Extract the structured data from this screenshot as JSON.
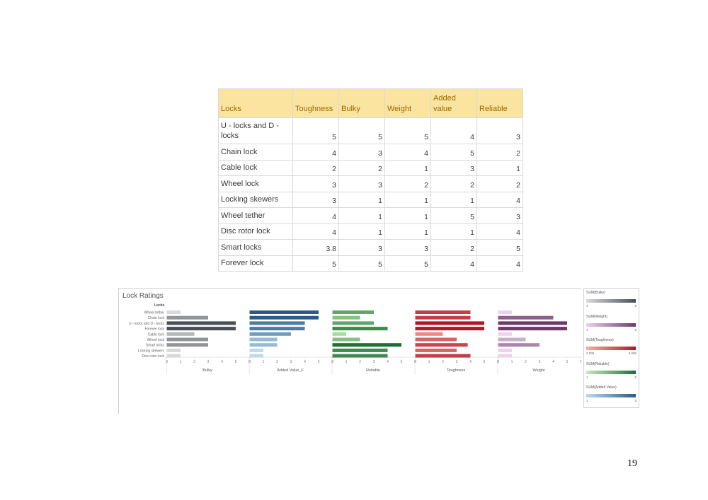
{
  "table": {
    "headers": [
      "Locks",
      "Toughness",
      "Bulky",
      "Weight",
      "Added value",
      "Reliable"
    ],
    "rows": [
      {
        "lock": "U - locks and D - locks",
        "values": [
          "5",
          "5",
          "5",
          "4",
          "3"
        ]
      },
      {
        "lock": "Chain lock",
        "values": [
          "4",
          "3",
          "4",
          "5",
          "2"
        ]
      },
      {
        "lock": "Cable lock",
        "values": [
          "2",
          "2",
          "1",
          "3",
          "1"
        ]
      },
      {
        "lock": "Wheel lock",
        "values": [
          "3",
          "3",
          "2",
          "2",
          "2"
        ]
      },
      {
        "lock": "Locking skewers",
        "values": [
          "3",
          "1",
          "1",
          "1",
          "4"
        ]
      },
      {
        "lock": "Wheel tether",
        "values": [
          "4",
          "1",
          "1",
          "5",
          "3"
        ]
      },
      {
        "lock": "Disc rotor lock",
        "values": [
          "4",
          "1",
          "1",
          "1",
          "4"
        ]
      },
      {
        "lock": "Smart locks",
        "values": [
          "3.8",
          "3",
          "3",
          "2",
          "5"
        ]
      },
      {
        "lock": "Forever lock",
        "values": [
          "5",
          "5",
          "5",
          "4",
          "4"
        ]
      }
    ]
  },
  "dashboard": {
    "title": "Lock Ratings",
    "locks_header": "Locks"
  },
  "chart_data": {
    "type": "bar",
    "title": "Lock Ratings",
    "orientation": "horizontal",
    "categories": [
      "Wheel tether",
      "Chain lock",
      "U - locks and D - locks",
      "Forever lock",
      "Cable lock",
      "Wheel lock",
      "Smart locks",
      "Locking skewers",
      "Disc rotor lock"
    ],
    "ticks": [
      "0",
      "1",
      "2",
      "3",
      "4",
      "5",
      "6"
    ],
    "series": [
      {
        "name": "Bulky",
        "values": [
          1,
          3,
          5,
          5,
          2,
          3,
          3,
          1,
          1
        ],
        "color_low": "#d9d9d9",
        "color_high": "#4a4f55"
      },
      {
        "name": "Added Value_F",
        "values": [
          5,
          5,
          4,
          4,
          3,
          2,
          2,
          1,
          1
        ],
        "color_low": "#b9dcef",
        "color_high": "#2c5a88"
      },
      {
        "name": "Reliable",
        "values": [
          3,
          2,
          3,
          4,
          1,
          2,
          5,
          4,
          4
        ],
        "color_low": "#a6dc9b",
        "color_high": "#1e6e36"
      },
      {
        "name": "Toughness",
        "values": [
          4,
          4,
          5,
          5,
          2,
          3,
          3.8,
          3,
          4
        ],
        "color_low": "#f8b1a1",
        "color_high": "#b5152b"
      },
      {
        "name": "Weight",
        "values": [
          1,
          4,
          5,
          5,
          1,
          2,
          3,
          1,
          1
        ],
        "color_low": "#ecd2ec",
        "color_high": "#6d3a6b"
      }
    ]
  },
  "legends": [
    {
      "title": "SUM(Bulky)",
      "min": "1",
      "max": "5",
      "color_low": "#d9d9d9",
      "color_high": "#4a4f55"
    },
    {
      "title": "SUM(Weight)",
      "min": "1",
      "max": "5",
      "color_low": "#ecd2ec",
      "color_high": "#6d3a6b"
    },
    {
      "title": "SUM(Toughness)",
      "min": "2.000",
      "max": "5.000",
      "color_low": "#f8b1a1",
      "color_high": "#b5152b"
    },
    {
      "title": "SUM(Reliable)",
      "min": "1",
      "max": "5",
      "color_low": "#c7ebbd",
      "color_high": "#1e6e36"
    },
    {
      "title": "SUM(Added Value)",
      "min": "1",
      "max": "5",
      "color_low": "#b9dcef",
      "color_high": "#2c5a88"
    }
  ],
  "page_number": "19"
}
